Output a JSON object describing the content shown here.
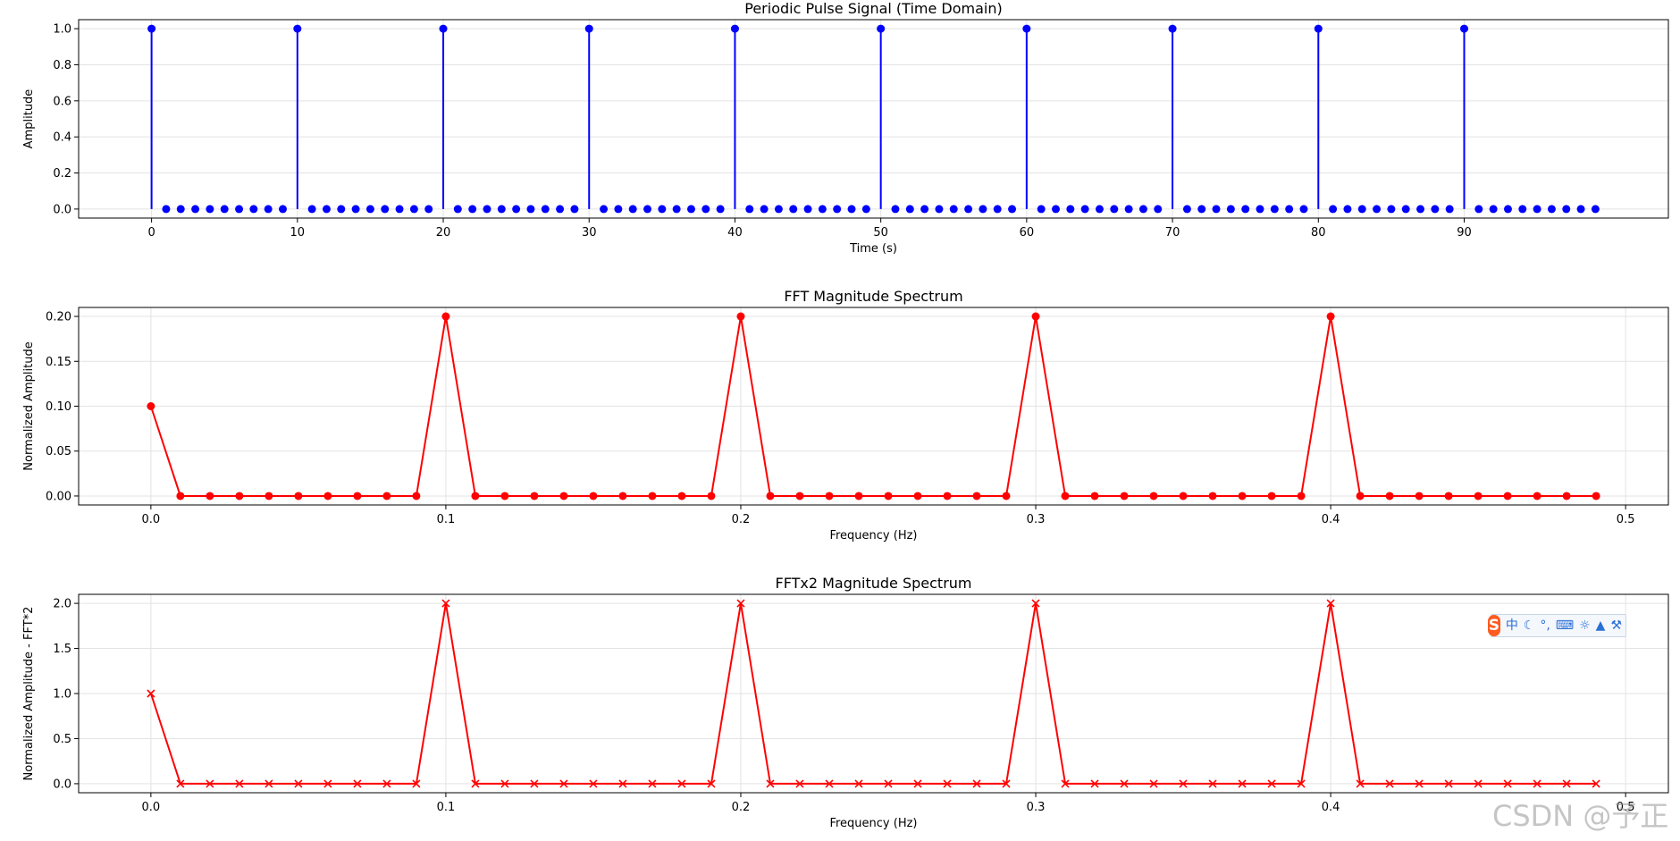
{
  "chart_data": [
    {
      "type": "stem",
      "title": "Periodic Pulse Signal (Time Domain)",
      "xlabel": "Time (s)",
      "ylabel": "Amplitude",
      "xlim": [
        -5,
        104
      ],
      "ylim": [
        -0.05,
        1.05
      ],
      "xticks": [
        0,
        10,
        20,
        30,
        40,
        50,
        60,
        70,
        80,
        90
      ],
      "yticks": [
        0.0,
        0.2,
        0.4,
        0.6,
        0.8,
        1.0
      ],
      "ytick_decimals": 1,
      "xtick_decimals": 0,
      "grid": true,
      "color": "#0000ff",
      "marker": "circle",
      "x_start": 0,
      "x_step": 1,
      "pulse_positions": [
        0,
        10,
        20,
        30,
        40,
        50,
        60,
        70,
        80,
        90
      ],
      "n_points": 100,
      "pulse_value": 1.0,
      "baseline_value": 0.0
    },
    {
      "type": "line",
      "title": "FFT Magnitude Spectrum",
      "xlabel": "Frequency (Hz)",
      "ylabel": "Normalized Amplitude",
      "xlim": [
        -0.0245,
        0.5145
      ],
      "ylim": [
        -0.01,
        0.21
      ],
      "xticks": [
        0.0,
        0.1,
        0.2,
        0.3,
        0.4,
        0.5
      ],
      "yticks": [
        0.0,
        0.05,
        0.1,
        0.15,
        0.2
      ],
      "ytick_decimals": 2,
      "xtick_decimals": 1,
      "grid": true,
      "color": "#ff0000",
      "marker": "circle",
      "x_start": 0.0,
      "x_step": 0.01,
      "values": [
        0.1,
        0,
        0,
        0,
        0,
        0,
        0,
        0,
        0,
        0,
        0.2,
        0,
        0,
        0,
        0,
        0,
        0,
        0,
        0,
        0,
        0.2,
        0,
        0,
        0,
        0,
        0,
        0,
        0,
        0,
        0,
        0.2,
        0,
        0,
        0,
        0,
        0,
        0,
        0,
        0,
        0,
        0.2,
        0,
        0,
        0,
        0,
        0,
        0,
        0,
        0,
        0
      ]
    },
    {
      "type": "line",
      "title": "FFTx2 Magnitude Spectrum",
      "xlabel": "Frequency (Hz)",
      "ylabel": "Normalized Amplitude - FFT*2",
      "xlim": [
        -0.0245,
        0.5145
      ],
      "ylim": [
        -0.1,
        2.1
      ],
      "xticks": [
        0.0,
        0.1,
        0.2,
        0.3,
        0.4,
        0.5
      ],
      "yticks": [
        0.0,
        0.5,
        1.0,
        1.5,
        2.0
      ],
      "ytick_decimals": 1,
      "xtick_decimals": 1,
      "grid": true,
      "color": "#ff0000",
      "marker": "x",
      "x_start": 0.0,
      "x_step": 0.01,
      "values": [
        1,
        0,
        0,
        0,
        0,
        0,
        0,
        0,
        0,
        0,
        2,
        0,
        0,
        0,
        0,
        0,
        0,
        0,
        0,
        0,
        2,
        0,
        0,
        0,
        0,
        0,
        0,
        0,
        0,
        0,
        2,
        0,
        0,
        0,
        0,
        0,
        0,
        0,
        0,
        0,
        2,
        0,
        0,
        0,
        0,
        0,
        0,
        0,
        0,
        0
      ]
    }
  ],
  "overlay": {
    "ime_toolbar": {
      "logo": "S",
      "lang": "中",
      "moon_icon": "moon-icon",
      "punct": "°,",
      "keyboard_icon": "keyboard-icon",
      "voice_icon": "voice-icon",
      "skin_icon": "shirt-icon",
      "settings_icon": "wrench-icon",
      "accent": "#2a6fd6",
      "logo_color": "#ff5a1f"
    },
    "watermark": "CSDN @予正"
  }
}
